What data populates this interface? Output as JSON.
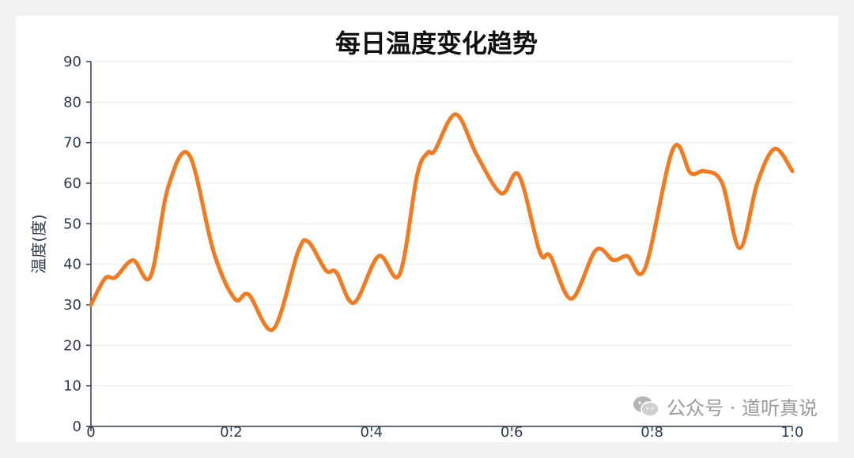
{
  "chart_data": {
    "type": "line",
    "title": "每日温度变化趋势",
    "xlabel": "",
    "ylabel": "温度(度)",
    "xlim": [
      0,
      1.0
    ],
    "ylim": [
      0,
      90
    ],
    "x_ticks": [
      "0",
      "0.2",
      "0.4",
      "0.6",
      "0.8",
      "1.0"
    ],
    "y_ticks": [
      "0",
      "10",
      "20",
      "30",
      "40",
      "50",
      "60",
      "70",
      "80",
      "90"
    ],
    "grid": true,
    "series": [
      {
        "color": "#f47a20",
        "x": [
          0.0,
          0.02,
          0.035,
          0.06,
          0.085,
          0.11,
          0.14,
          0.175,
          0.205,
          0.225,
          0.26,
          0.295,
          0.31,
          0.335,
          0.35,
          0.375,
          0.41,
          0.44,
          0.465,
          0.48,
          0.49,
          0.52,
          0.55,
          0.585,
          0.61,
          0.64,
          0.655,
          0.685,
          0.72,
          0.745,
          0.765,
          0.79,
          0.83,
          0.855,
          0.875,
          0.9,
          0.925,
          0.95,
          0.975,
          1.0
        ],
        "y": [
          30,
          36.5,
          36.8,
          41,
          37,
          59,
          67,
          43,
          31.5,
          32.5,
          24,
          43,
          45.5,
          38.5,
          38,
          30.5,
          42,
          37.5,
          62,
          67.5,
          68,
          77,
          67,
          57.5,
          62,
          43,
          42,
          31.5,
          43.5,
          41,
          42,
          39,
          68.5,
          62.5,
          63,
          60,
          44,
          60,
          68.5,
          63
        ]
      }
    ]
  },
  "watermark": {
    "icon": "wechat-icon",
    "text": "公众号 · 道听真说"
  },
  "colors": {
    "line": "#f47a20",
    "axis": "#2d3b4e",
    "grid": "#e9e9e9"
  }
}
